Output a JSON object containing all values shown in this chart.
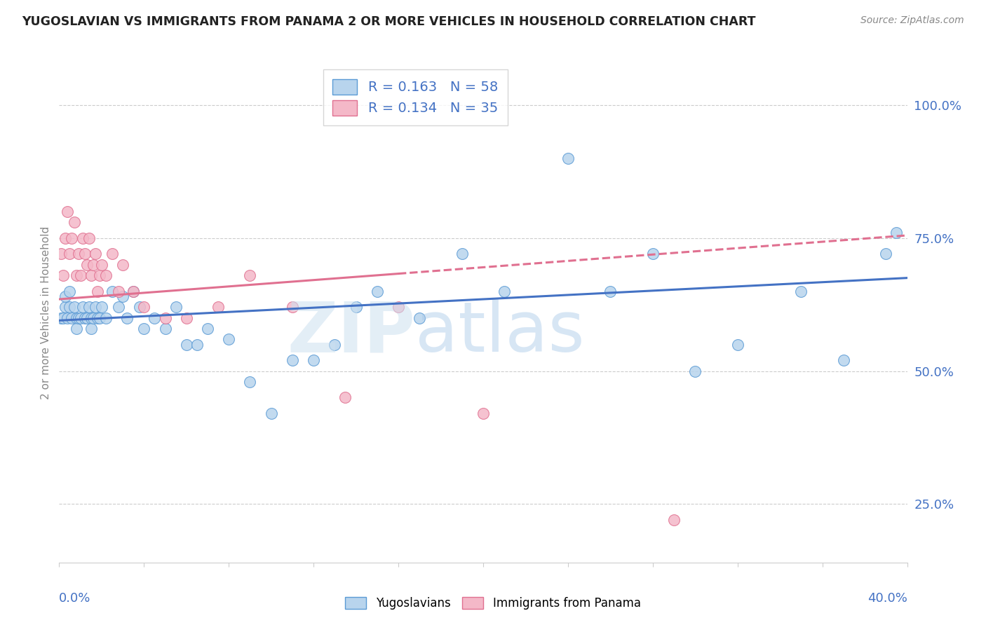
{
  "title": "YUGOSLAVIAN VS IMMIGRANTS FROM PANAMA 2 OR MORE VEHICLES IN HOUSEHOLD CORRELATION CHART",
  "source_text": "Source: ZipAtlas.com",
  "ylabel": "2 or more Vehicles in Household",
  "ytick_vals": [
    0.25,
    0.5,
    0.75,
    1.0
  ],
  "legend1_label": "R = 0.163   N = 58",
  "legend2_label": "R = 0.134   N = 35",
  "blue_fill": "#b8d4ed",
  "blue_edge": "#5b9bd5",
  "pink_fill": "#f4b8c8",
  "pink_edge": "#e07090",
  "blue_line": "#4472c4",
  "pink_line": "#e07090",
  "xlim": [
    0.0,
    0.4
  ],
  "ylim": [
    0.14,
    1.08
  ],
  "blue_scatter_x": [
    0.001,
    0.002,
    0.003,
    0.003,
    0.004,
    0.005,
    0.005,
    0.006,
    0.007,
    0.008,
    0.008,
    0.009,
    0.01,
    0.011,
    0.012,
    0.013,
    0.014,
    0.015,
    0.015,
    0.016,
    0.017,
    0.018,
    0.019,
    0.02,
    0.022,
    0.025,
    0.028,
    0.03,
    0.032,
    0.035,
    0.038,
    0.04,
    0.045,
    0.05,
    0.055,
    0.06,
    0.065,
    0.07,
    0.08,
    0.09,
    0.1,
    0.11,
    0.12,
    0.13,
    0.14,
    0.15,
    0.17,
    0.19,
    0.21,
    0.24,
    0.26,
    0.28,
    0.3,
    0.32,
    0.35,
    0.37,
    0.39,
    0.395
  ],
  "blue_scatter_y": [
    0.6,
    0.6,
    0.62,
    0.64,
    0.6,
    0.62,
    0.65,
    0.6,
    0.62,
    0.6,
    0.58,
    0.6,
    0.6,
    0.62,
    0.6,
    0.6,
    0.62,
    0.6,
    0.58,
    0.6,
    0.62,
    0.6,
    0.6,
    0.62,
    0.6,
    0.65,
    0.62,
    0.64,
    0.6,
    0.65,
    0.62,
    0.58,
    0.6,
    0.58,
    0.62,
    0.55,
    0.55,
    0.58,
    0.56,
    0.48,
    0.42,
    0.52,
    0.52,
    0.55,
    0.62,
    0.65,
    0.6,
    0.72,
    0.65,
    0.9,
    0.65,
    0.72,
    0.5,
    0.55,
    0.65,
    0.52,
    0.72,
    0.76
  ],
  "pink_scatter_x": [
    0.001,
    0.002,
    0.003,
    0.004,
    0.005,
    0.006,
    0.007,
    0.008,
    0.009,
    0.01,
    0.011,
    0.012,
    0.013,
    0.014,
    0.015,
    0.016,
    0.017,
    0.018,
    0.019,
    0.02,
    0.022,
    0.025,
    0.028,
    0.03,
    0.035,
    0.04,
    0.05,
    0.06,
    0.075,
    0.09,
    0.11,
    0.135,
    0.16,
    0.2,
    0.29
  ],
  "pink_scatter_y": [
    0.72,
    0.68,
    0.75,
    0.8,
    0.72,
    0.75,
    0.78,
    0.68,
    0.72,
    0.68,
    0.75,
    0.72,
    0.7,
    0.75,
    0.68,
    0.7,
    0.72,
    0.65,
    0.68,
    0.7,
    0.68,
    0.72,
    0.65,
    0.7,
    0.65,
    0.62,
    0.6,
    0.6,
    0.62,
    0.68,
    0.62,
    0.45,
    0.62,
    0.42,
    0.22
  ]
}
